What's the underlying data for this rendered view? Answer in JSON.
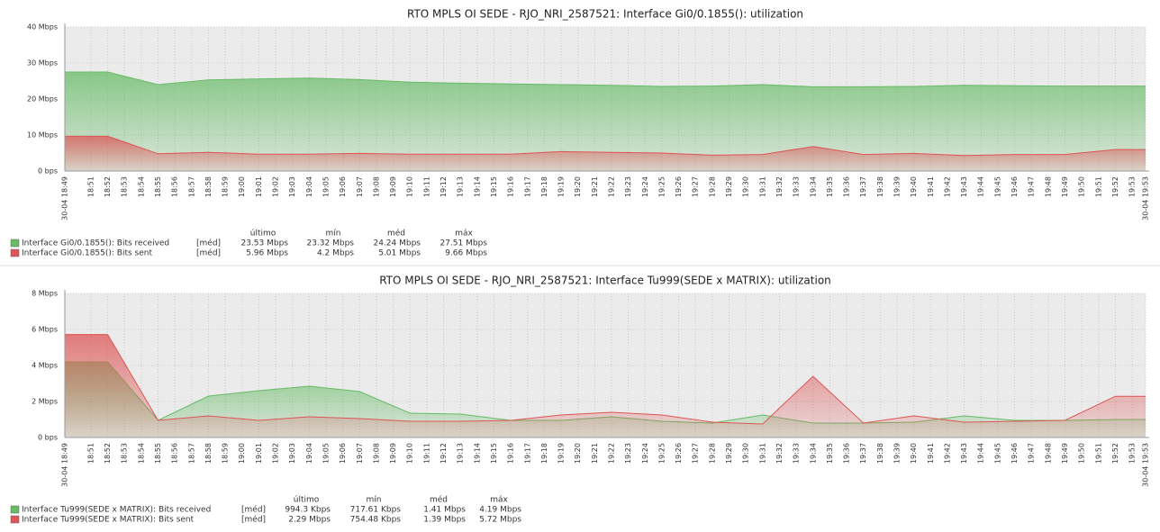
{
  "chart_data": [
    {
      "type": "area",
      "title": "RTO MPLS OI SEDE - RJO_NRI_2587521: Interface Gi0/0.1855(): utilization",
      "x": [
        49.45,
        52,
        55,
        58,
        61,
        64,
        67,
        70,
        73,
        76,
        79,
        82,
        85,
        88,
        91,
        94,
        97,
        100,
        103,
        106,
        109,
        112,
        113.8
      ],
      "series": [
        {
          "name": "Interface Gi0/0.1855(): Bits received",
          "color": "#66bb66",
          "values": [
            27.5,
            27.5,
            24,
            25.3,
            25.6,
            25.8,
            25.4,
            24.7,
            24.4,
            24.2,
            24.0,
            23.8,
            23.5,
            23.6,
            24.0,
            23.4,
            23.4,
            23.5,
            23.8,
            23.7,
            23.6,
            23.6,
            23.6
          ]
        },
        {
          "name": "Interface Gi0/0.1855(): Bits sent",
          "color": "#dd5555",
          "values": [
            9.66,
            9.66,
            4.8,
            5.2,
            4.7,
            4.7,
            4.9,
            4.7,
            4.7,
            4.7,
            5.4,
            5.2,
            5.0,
            4.4,
            4.6,
            6.8,
            4.6,
            4.9,
            4.3,
            4.6,
            4.6,
            5.96,
            5.96
          ]
        }
      ],
      "xlim": [
        49.45,
        113.8
      ],
      "ylim": [
        0,
        40
      ],
      "yticks": [
        {
          "value": 0,
          "label": "0 bps"
        },
        {
          "value": 10,
          "label": "10 Mbps"
        },
        {
          "value": 20,
          "label": "20 Mbps"
        },
        {
          "value": 30,
          "label": "30 Mbps"
        },
        {
          "value": 40,
          "label": "40 Mbps"
        }
      ],
      "legend": {
        "headers": [
          "último",
          "mín",
          "méd",
          "máx"
        ],
        "rows": [
          {
            "tag": "[méd]",
            "values": [
              "23.53 Mbps",
              "23.32 Mbps",
              "24.24 Mbps",
              "27.51 Mbps"
            ]
          },
          {
            "tag": "[méd]",
            "values": [
              "5.96 Mbps",
              "4.2 Mbps",
              "5.01 Mbps",
              "9.66 Mbps"
            ]
          }
        ]
      },
      "grid": true
    },
    {
      "type": "area",
      "title": "RTO MPLS OI SEDE - RJO_NRI_2587521: Interface Tu999(SEDE x MATRIX): utilization",
      "x": [
        49.45,
        52,
        55,
        58,
        61,
        64,
        67,
        70,
        73,
        76,
        79,
        82,
        85,
        88,
        91,
        94,
        97,
        100,
        103,
        106,
        109,
        112,
        113.8
      ],
      "series": [
        {
          "name": "Interface Tu999(SEDE x MATRIX): Bits received",
          "color": "#66bb66",
          "values": [
            4.2,
            4.2,
            0.95,
            2.3,
            2.6,
            2.85,
            2.55,
            1.35,
            1.3,
            0.95,
            0.95,
            1.15,
            0.9,
            0.8,
            1.25,
            0.8,
            0.8,
            0.85,
            1.2,
            0.95,
            0.95,
            1.0,
            1.0
          ]
        },
        {
          "name": "Interface Tu999(SEDE x MATRIX): Bits sent",
          "color": "#dd5555",
          "values": [
            5.72,
            5.72,
            0.95,
            1.2,
            0.95,
            1.15,
            1.05,
            0.9,
            0.9,
            0.95,
            1.25,
            1.4,
            1.25,
            0.85,
            0.75,
            3.4,
            0.8,
            1.2,
            0.85,
            0.9,
            0.95,
            2.29,
            2.29
          ]
        }
      ],
      "xlim": [
        49.45,
        113.8
      ],
      "ylim": [
        0,
        8
      ],
      "yticks": [
        {
          "value": 0,
          "label": "0 bps"
        },
        {
          "value": 2,
          "label": "2 Mbps"
        },
        {
          "value": 4,
          "label": "4 Mbps"
        },
        {
          "value": 6,
          "label": "6 Mbps"
        },
        {
          "value": 8,
          "label": "8 Mbps"
        }
      ],
      "legend": {
        "headers": [
          "último",
          "mín",
          "méd",
          "máx"
        ],
        "rows": [
          {
            "tag": "[méd]",
            "values": [
              "994.3 Kbps",
              "717.61 Kbps",
              "1.41 Mbps",
              "4.19 Mbps"
            ]
          },
          {
            "tag": "[méd]",
            "values": [
              "2.29 Mbps",
              "754.48 Kbps",
              "1.39 Mbps",
              "5.72 Mbps"
            ]
          }
        ]
      },
      "grid": true
    }
  ],
  "xticks": [
    {
      "value": 49.45,
      "label": "30-04 18:49"
    },
    {
      "value": 51,
      "label": "18:51"
    },
    {
      "value": 52,
      "label": "18:52"
    },
    {
      "value": 53,
      "label": "18:53"
    },
    {
      "value": 54,
      "label": "18:54"
    },
    {
      "value": 55,
      "label": "18:55"
    },
    {
      "value": 56,
      "label": "18:56"
    },
    {
      "value": 57,
      "label": "18:57"
    },
    {
      "value": 58,
      "label": "18:58"
    },
    {
      "value": 59,
      "label": "18:59"
    },
    {
      "value": 60,
      "label": "19:00"
    },
    {
      "value": 61,
      "label": "19:01"
    },
    {
      "value": 62,
      "label": "19:02"
    },
    {
      "value": 63,
      "label": "19:03"
    },
    {
      "value": 64,
      "label": "19:04"
    },
    {
      "value": 65,
      "label": "19:05"
    },
    {
      "value": 66,
      "label": "19:06"
    },
    {
      "value": 67,
      "label": "19:07"
    },
    {
      "value": 68,
      "label": "19:08"
    },
    {
      "value": 69,
      "label": "19:09"
    },
    {
      "value": 70,
      "label": "19:10"
    },
    {
      "value": 71,
      "label": "19:11"
    },
    {
      "value": 72,
      "label": "19:12"
    },
    {
      "value": 73,
      "label": "19:13"
    },
    {
      "value": 74,
      "label": "19:14"
    },
    {
      "value": 75,
      "label": "19:15"
    },
    {
      "value": 76,
      "label": "19:16"
    },
    {
      "value": 77,
      "label": "19:17"
    },
    {
      "value": 78,
      "label": "19:18"
    },
    {
      "value": 79,
      "label": "19:19"
    },
    {
      "value": 80,
      "label": "19:20"
    },
    {
      "value": 81,
      "label": "19:21"
    },
    {
      "value": 82,
      "label": "19:22"
    },
    {
      "value": 83,
      "label": "19:23"
    },
    {
      "value": 84,
      "label": "19:24"
    },
    {
      "value": 85,
      "label": "19:25"
    },
    {
      "value": 86,
      "label": "19:26"
    },
    {
      "value": 87,
      "label": "19:27"
    },
    {
      "value": 88,
      "label": "19:28"
    },
    {
      "value": 89,
      "label": "19:29"
    },
    {
      "value": 90,
      "label": "19:30"
    },
    {
      "value": 91,
      "label": "19:31"
    },
    {
      "value": 92,
      "label": "19:32"
    },
    {
      "value": 93,
      "label": "19:33"
    },
    {
      "value": 94,
      "label": "19:34"
    },
    {
      "value": 95,
      "label": "19:35"
    },
    {
      "value": 96,
      "label": "19:36"
    },
    {
      "value": 97,
      "label": "19:37"
    },
    {
      "value": 98,
      "label": "19:38"
    },
    {
      "value": 99,
      "label": "19:39"
    },
    {
      "value": 100,
      "label": "19:40"
    },
    {
      "value": 101,
      "label": "19:41"
    },
    {
      "value": 102,
      "label": "19:42"
    },
    {
      "value": 103,
      "label": "19:43"
    },
    {
      "value": 104,
      "label": "19:44"
    },
    {
      "value": 105,
      "label": "19:45"
    },
    {
      "value": 106,
      "label": "19:46"
    },
    {
      "value": 107,
      "label": "19:47"
    },
    {
      "value": 108,
      "label": "19:48"
    },
    {
      "value": 109,
      "label": "19:49"
    },
    {
      "value": 110,
      "label": "19:50"
    },
    {
      "value": 111,
      "label": "19:51"
    },
    {
      "value": 112,
      "label": "19:52"
    },
    {
      "value": 113,
      "label": "19:53"
    },
    {
      "value": 113.8,
      "label": "30-04 19:53"
    }
  ],
  "highlight_color": "#e33333"
}
